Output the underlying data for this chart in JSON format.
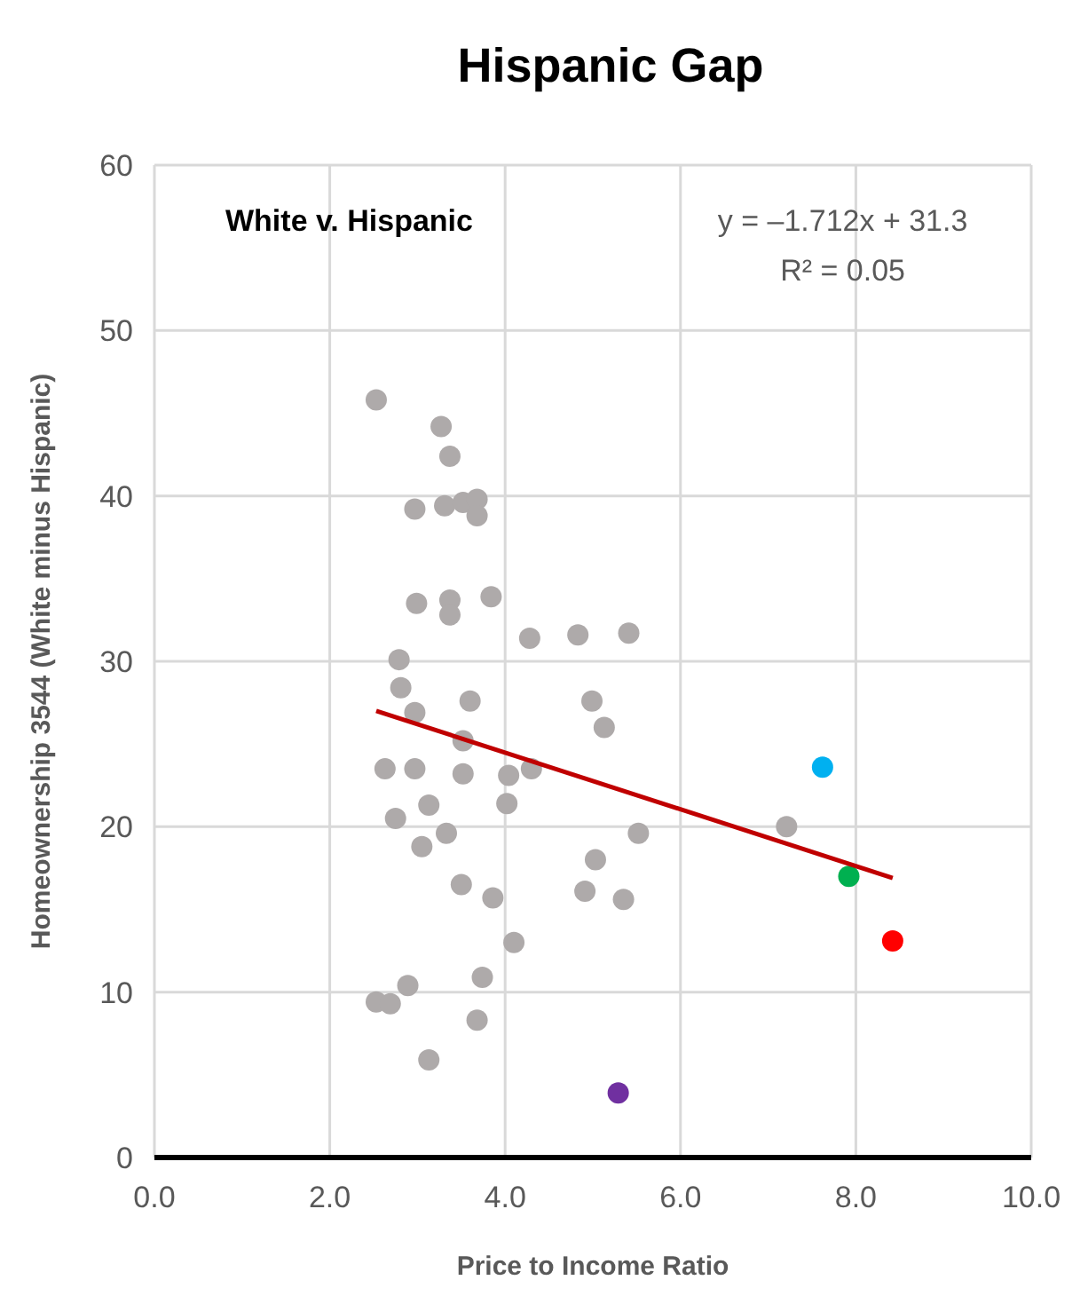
{
  "chart_data": {
    "type": "scatter",
    "title": "Hispanic Gap",
    "xlabel": "Price to Income Ratio",
    "ylabel": "Homeownership 3544 (White minus Hispanic)",
    "xlim": [
      0,
      10
    ],
    "ylim": [
      0,
      60
    ],
    "xticks": [
      {
        "value": 0,
        "label": "0.0"
      },
      {
        "value": 2,
        "label": "2.0"
      },
      {
        "value": 4,
        "label": "4.0"
      },
      {
        "value": 6,
        "label": "6.0"
      },
      {
        "value": 8,
        "label": "8.0"
      },
      {
        "value": 10,
        "label": "10.0"
      }
    ],
    "yticks": [
      0,
      10,
      20,
      30,
      40,
      50,
      60
    ],
    "grid": true,
    "marker": "circle",
    "annotations": [
      "White v. Hispanic",
      "y = –1.712x + 31.3",
      "R² = 0.05"
    ],
    "series": [
      {
        "color": "#aeaaaa",
        "x": [
          2.53,
          3.27,
          3.37,
          2.97,
          3.31,
          3.52,
          3.68,
          3.68,
          2.99,
          3.37,
          3.37,
          3.84,
          4.28,
          4.83,
          5.41,
          2.79,
          2.81,
          3.6,
          2.97,
          4.99,
          5.13,
          3.52,
          2.63,
          2.97,
          3.52,
          4.04,
          4.3,
          4.02,
          3.13,
          2.75,
          3.33,
          3.05,
          5.52,
          5.03,
          7.21,
          3.5,
          3.86,
          4.91,
          5.35,
          4.1,
          3.74,
          2.89,
          2.53,
          2.69,
          3.68,
          3.13
        ],
        "values": [
          45.8,
          44.2,
          42.4,
          39.2,
          39.4,
          39.6,
          39.8,
          38.8,
          33.5,
          33.7,
          32.8,
          33.9,
          31.4,
          31.6,
          31.7,
          30.1,
          28.4,
          27.6,
          26.9,
          27.6,
          26.0,
          25.2,
          23.5,
          23.5,
          23.2,
          23.1,
          23.5,
          21.4,
          21.3,
          20.5,
          19.6,
          18.8,
          19.6,
          18.0,
          20.0,
          16.5,
          15.7,
          16.1,
          15.6,
          13.0,
          10.9,
          10.4,
          9.4,
          9.3,
          8.3,
          5.9
        ]
      },
      {
        "type": "scatter",
        "color": "#00b0f0",
        "x": [
          7.62
        ],
        "values": [
          23.6
        ]
      },
      {
        "type": "scatter",
        "color": "#00b050",
        "x": [
          7.92
        ],
        "values": [
          17.0
        ]
      },
      {
        "type": "scatter",
        "color": "#ff0000",
        "x": [
          8.42
        ],
        "values": [
          13.1
        ]
      },
      {
        "type": "scatter",
        "color": "#7030a0",
        "x": [
          5.29
        ],
        "values": [
          3.9
        ]
      },
      {
        "type": "line",
        "color": "#c00000",
        "x": [
          2.53,
          8.42
        ],
        "values": [
          27.0,
          16.9
        ],
        "marker": "none"
      }
    ]
  }
}
